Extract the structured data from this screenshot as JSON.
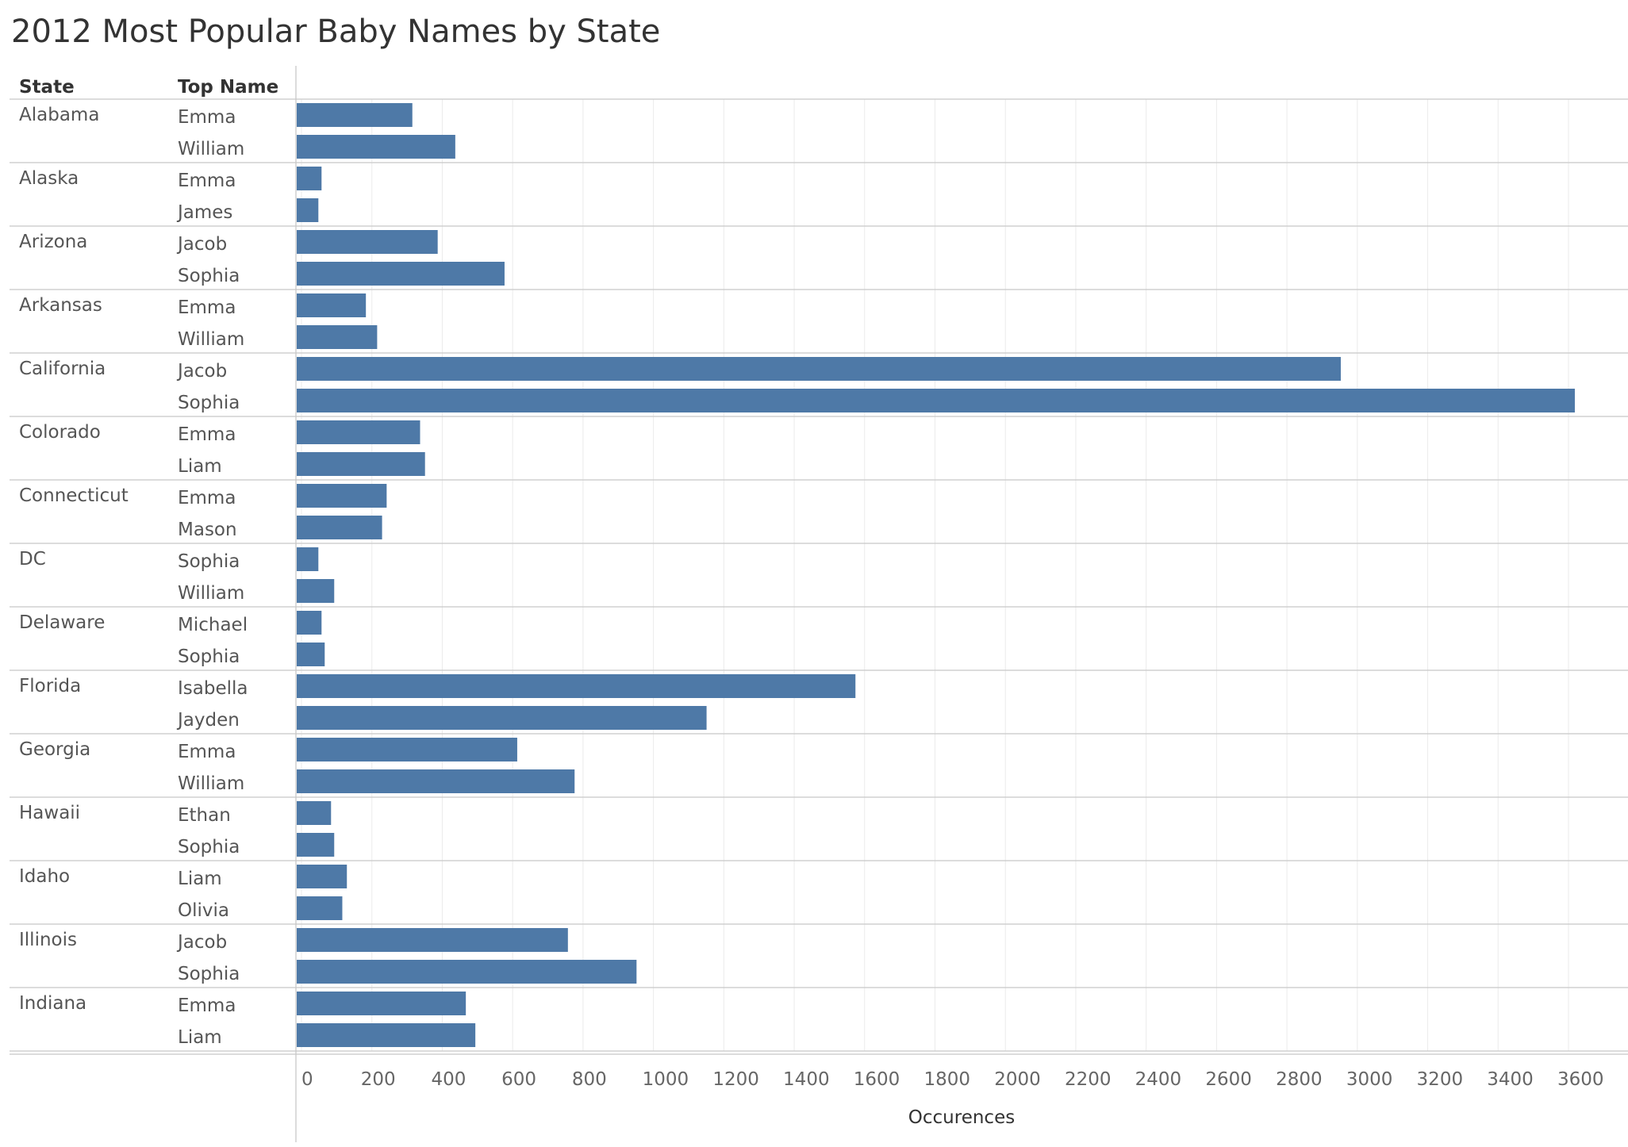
{
  "colors": {
    "bar": "#4e79a7",
    "text": "#555555"
  },
  "chart_data": {
    "type": "bar",
    "orientation": "horizontal",
    "title": "2012 Most Popular Baby Names by State",
    "row_headers": [
      "State",
      "Top Name"
    ],
    "xlabel": "Occurences",
    "xlim": [
      0,
      3700
    ],
    "x_ticks": [
      0,
      200,
      400,
      600,
      800,
      1000,
      1200,
      1400,
      1600,
      1800,
      2000,
      2200,
      2400,
      2600,
      2800,
      3000,
      3200,
      3400,
      3600
    ],
    "grid": true,
    "groups": [
      {
        "state": "Alabama",
        "rows": [
          {
            "name": "Emma",
            "value": 315
          },
          {
            "name": "William",
            "value": 437
          }
        ]
      },
      {
        "state": "Alaska",
        "rows": [
          {
            "name": "Emma",
            "value": 57
          },
          {
            "name": "James",
            "value": 48
          }
        ]
      },
      {
        "state": "Arizona",
        "rows": [
          {
            "name": "Jacob",
            "value": 387
          },
          {
            "name": "Sophia",
            "value": 577
          }
        ]
      },
      {
        "state": "Arkansas",
        "rows": [
          {
            "name": "Emma",
            "value": 183
          },
          {
            "name": "William",
            "value": 215
          }
        ]
      },
      {
        "state": "California",
        "rows": [
          {
            "name": "Jacob",
            "value": 2953
          },
          {
            "name": "Sophia",
            "value": 3618
          }
        ]
      },
      {
        "state": "Colorado",
        "rows": [
          {
            "name": "Emma",
            "value": 337
          },
          {
            "name": "Liam",
            "value": 351
          }
        ]
      },
      {
        "state": "Connecticut",
        "rows": [
          {
            "name": "Emma",
            "value": 242
          },
          {
            "name": "Mason",
            "value": 229
          }
        ]
      },
      {
        "state": "DC",
        "rows": [
          {
            "name": "Sophia",
            "value": 48
          },
          {
            "name": "William",
            "value": 93
          }
        ]
      },
      {
        "state": "Delaware",
        "rows": [
          {
            "name": "Michael",
            "value": 57
          },
          {
            "name": "Sophia",
            "value": 66
          }
        ]
      },
      {
        "state": "Florida",
        "rows": [
          {
            "name": "Isabella",
            "value": 1574
          },
          {
            "name": "Jayden",
            "value": 1151
          }
        ]
      },
      {
        "state": "Georgia",
        "rows": [
          {
            "name": "Emma",
            "value": 613
          },
          {
            "name": "William",
            "value": 776
          }
        ]
      },
      {
        "state": "Hawaii",
        "rows": [
          {
            "name": "Ethan",
            "value": 84
          },
          {
            "name": "Sophia",
            "value": 93
          }
        ]
      },
      {
        "state": "Idaho",
        "rows": [
          {
            "name": "Liam",
            "value": 129
          },
          {
            "name": "Olivia",
            "value": 116
          }
        ]
      },
      {
        "state": "Illinois",
        "rows": [
          {
            "name": "Jacob",
            "value": 757
          },
          {
            "name": "Sophia",
            "value": 952
          }
        ]
      },
      {
        "state": "Indiana",
        "rows": [
          {
            "name": "Emma",
            "value": 467
          },
          {
            "name": "Liam",
            "value": 494
          }
        ]
      }
    ]
  }
}
